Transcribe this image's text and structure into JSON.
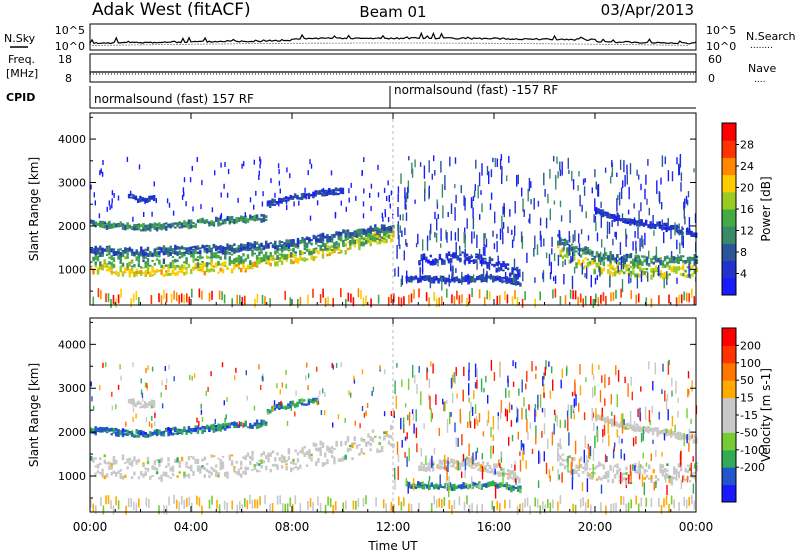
{
  "header": {
    "station": "Adak West (fitACF)",
    "beam": "Beam 01",
    "date": "03/Apr/2013"
  },
  "strips": {
    "nsky_label": "N.Sky",
    "nsearch_label": "N.Search",
    "nsearch_dots": "........",
    "count_ticks": [
      "10^5",
      "10^0"
    ],
    "freq_label": "Freq.",
    "freq_unit": "[MHz]",
    "freq_ticks": [
      "18",
      "8"
    ],
    "nave_label": "Nave",
    "nave_dots": "....",
    "nave_ticks": [
      "60",
      "0"
    ],
    "cpid_label": "CPID",
    "cpid_segments": [
      "normalsound (fast) 157 RF",
      "normalsound (fast) -157 RF"
    ]
  },
  "colors": {
    "power_scale": [
      "#1a1aff",
      "#2233cc",
      "#2a5599",
      "#3a8a6a",
      "#44aa44",
      "#99cc22",
      "#ffcc00",
      "#ff8800",
      "#ff3300",
      "#ff0000"
    ],
    "velocity_scale": [
      "#1a1aff",
      "#2255cc",
      "#33aa55",
      "#77cc33",
      "#c8c8c8",
      "#c8c8c8",
      "#ffaa00",
      "#ff7700",
      "#ff3300",
      "#ff0000"
    ]
  },
  "chart_data": [
    {
      "type": "heatmap",
      "name": "power",
      "ylabel": "Slant Range [km]",
      "ylim": [
        180,
        4600
      ],
      "yticks": [
        1000,
        2000,
        3000,
        4000
      ],
      "colorbar_label": "Power [dB]",
      "colorbar_range": [
        0,
        32
      ],
      "colorbar_ticks": [
        4,
        8,
        12,
        16,
        20,
        24,
        28
      ],
      "bands": [
        {
          "x": [
            0,
            2,
            4,
            6,
            8,
            10,
            12
          ],
          "y": [
            1050,
            950,
            1000,
            1080,
            1250,
            1500,
            1800
          ],
          "h": 180,
          "c": 20
        },
        {
          "x": [
            0,
            2,
            4,
            6,
            8,
            10,
            12
          ],
          "y": [
            1250,
            1200,
            1250,
            1300,
            1450,
            1650,
            1900
          ],
          "h": 260,
          "c": 13
        },
        {
          "x": [
            0,
            2,
            4,
            6,
            8,
            10,
            12
          ],
          "y": [
            1450,
            1400,
            1450,
            1500,
            1600,
            1800,
            2000
          ],
          "h": 120,
          "c": 8
        },
        {
          "x": [
            0,
            2,
            4,
            6,
            7
          ],
          "y": [
            2050,
            1950,
            2050,
            2150,
            2200
          ],
          "h": 100,
          "c": 11
        },
        {
          "x": [
            7,
            8,
            9,
            10
          ],
          "y": [
            2500,
            2650,
            2750,
            2800
          ],
          "h": 90,
          "c": 6
        },
        {
          "x": [
            1.5,
            2,
            2.5
          ],
          "y": [
            2700,
            2600,
            2650
          ],
          "h": 80,
          "c": 6
        },
        {
          "x": [
            13,
            14,
            15,
            16,
            17
          ],
          "y": [
            1200,
            1250,
            1300,
            1100,
            900
          ],
          "h": 180,
          "c": 5
        },
        {
          "x": [
            12.5,
            14,
            16,
            17
          ],
          "y": [
            800,
            750,
            800,
            700
          ],
          "h": 80,
          "c": 6
        },
        {
          "x": [
            18.5,
            19,
            20,
            21,
            22,
            23,
            24
          ],
          "y": [
            1500,
            1250,
            1050,
            1000,
            950,
            950,
            1000
          ],
          "h": 220,
          "c": 18
        },
        {
          "x": [
            18.5,
            19,
            20,
            21,
            22,
            23,
            24
          ],
          "y": [
            1700,
            1500,
            1300,
            1250,
            1200,
            1200,
            1250
          ],
          "h": 150,
          "c": 11
        },
        {
          "x": [
            20,
            21,
            22,
            23,
            24
          ],
          "y": [
            2350,
            2150,
            2050,
            1950,
            1800
          ],
          "h": 90,
          "c": 5
        }
      ]
    },
    {
      "type": "heatmap",
      "name": "velocity",
      "ylabel": "Slant Range [km]",
      "ylim": [
        180,
        4600
      ],
      "yticks": [
        1000,
        2000,
        3000,
        4000
      ],
      "colorbar_label": "Velocity [m s-1]",
      "colorbar_ticks": [
        "200",
        "100",
        "50",
        "15",
        "-15",
        "-50",
        "-100",
        "-200"
      ],
      "bands": [
        {
          "x": [
            0,
            2,
            4,
            6,
            8,
            10,
            12
          ],
          "y": [
            1250,
            1150,
            1200,
            1250,
            1400,
            1600,
            1900
          ],
          "h": 400,
          "c": 4
        },
        {
          "x": [
            0,
            2,
            4,
            6,
            7
          ],
          "y": [
            2050,
            1950,
            2050,
            2150,
            2200
          ],
          "h": 100,
          "c": 6
        },
        {
          "x": [
            7,
            8,
            9
          ],
          "y": [
            2500,
            2650,
            2700
          ],
          "h": 90,
          "c": 7
        },
        {
          "x": [
            1.5,
            2,
            2.5
          ],
          "y": [
            2700,
            2600,
            2650
          ],
          "h": 80,
          "c": 5
        },
        {
          "x": [
            13,
            14,
            15,
            16,
            17
          ],
          "y": [
            1200,
            1250,
            1300,
            1150,
            950
          ],
          "h": 160,
          "c": 5
        },
        {
          "x": [
            12.5,
            14,
            16,
            17
          ],
          "y": [
            800,
            750,
            800,
            700
          ],
          "h": 80,
          "c": 7
        },
        {
          "x": [
            18.5,
            19,
            20,
            21,
            22,
            23,
            24
          ],
          "y": [
            1500,
            1250,
            1100,
            1050,
            1050,
            1050,
            1100
          ],
          "h": 330,
          "c": 4
        },
        {
          "x": [
            20,
            21,
            22,
            23,
            24
          ],
          "y": [
            2350,
            2150,
            2050,
            1950,
            1800
          ],
          "h": 90,
          "c": 4
        }
      ]
    }
  ],
  "xaxis": {
    "label": "Time UT",
    "ticks": [
      "00:00",
      "04:00",
      "08:00",
      "12:00",
      "16:00",
      "20:00",
      "00:00"
    ]
  }
}
